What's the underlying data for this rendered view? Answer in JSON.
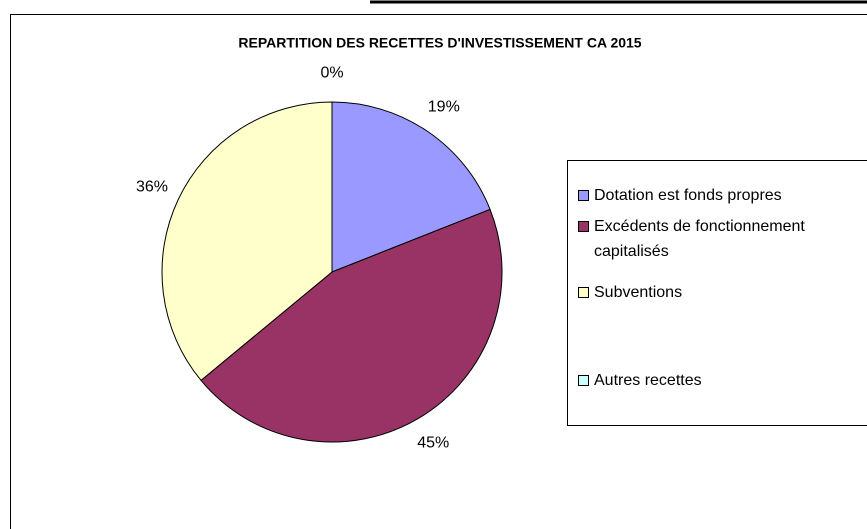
{
  "chart_data": {
    "type": "pie",
    "title": "REPARTITION DES RECETTES D'INVESTISSEMENT CA 2015",
    "categories": [
      "Dotation est fonds propres",
      "Excédents de fonctionnement capitalisés",
      "Subventions",
      "Autres recettes"
    ],
    "values": [
      19,
      45,
      36,
      0
    ],
    "value_labels": [
      "19%",
      "45%",
      "36%",
      "0%"
    ],
    "colors": [
      "#9999ff",
      "#993366",
      "#ffffcc",
      "#ccffff"
    ],
    "legend": "right"
  }
}
